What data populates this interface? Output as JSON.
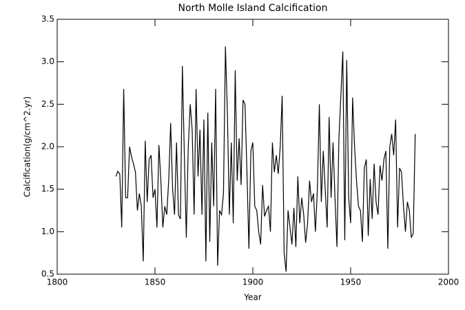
{
  "chart_data": {
    "type": "line",
    "title": "North Molle Island Calcification",
    "xlabel": "Year",
    "ylabel": "Calcification(g/cm^2.yr)",
    "x": [
      1830,
      1831,
      1832,
      1833,
      1834,
      1835,
      1836,
      1837,
      1838,
      1839,
      1840,
      1841,
      1842,
      1843,
      1844,
      1845,
      1846,
      1847,
      1848,
      1849,
      1850,
      1851,
      1852,
      1853,
      1854,
      1855,
      1856,
      1857,
      1858,
      1859,
      1860,
      1861,
      1862,
      1863,
      1864,
      1865,
      1866,
      1867,
      1868,
      1869,
      1870,
      1871,
      1872,
      1873,
      1874,
      1875,
      1876,
      1877,
      1878,
      1879,
      1880,
      1881,
      1882,
      1883,
      1884,
      1885,
      1886,
      1887,
      1888,
      1889,
      1890,
      1891,
      1892,
      1893,
      1894,
      1895,
      1896,
      1897,
      1898,
      1899,
      1900,
      1901,
      1902,
      1903,
      1904,
      1905,
      1906,
      1907,
      1908,
      1909,
      1910,
      1911,
      1912,
      1913,
      1914,
      1915,
      1916,
      1917,
      1918,
      1919,
      1920,
      1921,
      1922,
      1923,
      1924,
      1925,
      1926,
      1927,
      1928,
      1929,
      1930,
      1931,
      1932,
      1933,
      1934,
      1935,
      1936,
      1937,
      1938,
      1939,
      1940,
      1941,
      1942,
      1943,
      1944,
      1945,
      1946,
      1947,
      1948,
      1949,
      1950,
      1951,
      1952,
      1953,
      1954,
      1955,
      1956,
      1957,
      1958,
      1959,
      1960,
      1961,
      1962,
      1963,
      1964,
      1965,
      1966,
      1967,
      1968,
      1969,
      1970,
      1971,
      1972,
      1973,
      1974,
      1975,
      1976,
      1977,
      1978,
      1979,
      1980,
      1981,
      1982,
      1983
    ],
    "series": [
      {
        "color": "#000000",
        "values": [
          1.65,
          1.71,
          1.68,
          1.05,
          2.68,
          1.4,
          1.4,
          2.0,
          1.88,
          1.8,
          1.7,
          1.25,
          1.45,
          1.3,
          0.65,
          2.07,
          1.35,
          1.85,
          1.9,
          1.4,
          1.5,
          1.05,
          2.02,
          1.6,
          1.05,
          1.3,
          1.2,
          1.6,
          2.28,
          1.5,
          1.2,
          2.05,
          1.2,
          1.15,
          2.95,
          1.9,
          0.93,
          2.0,
          2.5,
          2.2,
          1.2,
          2.68,
          1.65,
          2.2,
          1.2,
          2.32,
          0.65,
          2.4,
          0.88,
          2.05,
          1.3,
          2.68,
          0.6,
          1.25,
          1.2,
          1.45,
          3.18,
          2.4,
          1.2,
          2.05,
          1.1,
          2.9,
          1.6,
          2.1,
          1.55,
          2.55,
          2.5,
          1.7,
          0.8,
          1.95,
          2.05,
          1.3,
          1.25,
          1.0,
          0.85,
          1.55,
          1.18,
          1.25,
          1.3,
          1.0,
          2.05,
          1.7,
          1.9,
          1.68,
          2.0,
          2.6,
          0.75,
          0.53,
          1.25,
          1.05,
          0.85,
          1.28,
          0.82,
          1.65,
          1.1,
          1.4,
          1.2,
          0.87,
          1.1,
          1.6,
          1.35,
          1.45,
          1.0,
          1.5,
          2.5,
          1.35,
          1.95,
          1.5,
          1.05,
          2.35,
          1.4,
          2.05,
          1.4,
          0.82,
          2.1,
          2.6,
          3.12,
          0.9,
          3.02,
          1.4,
          1.1,
          2.58,
          2.0,
          1.6,
          1.3,
          1.25,
          0.88,
          1.75,
          1.85,
          0.95,
          1.62,
          1.15,
          1.8,
          1.35,
          1.2,
          1.78,
          1.6,
          1.85,
          1.95,
          0.8,
          2.0,
          2.15,
          1.9,
          2.32,
          1.05,
          1.75,
          1.7,
          1.3,
          1.0,
          1.35,
          1.25,
          0.93,
          0.98,
          2.15
        ]
      }
    ],
    "xlim": [
      1800,
      2000
    ],
    "xticks": [
      1800,
      1850,
      1900,
      1950,
      2000
    ],
    "ylim": [
      0.5,
      3.5
    ],
    "yticks": [
      0.5,
      {
        "value": 1,
        "label": "1.0"
      },
      1.5,
      {
        "value": 2,
        "label": "2.0"
      },
      2.5,
      {
        "value": 3,
        "label": "3.0"
      },
      3.5
    ]
  }
}
